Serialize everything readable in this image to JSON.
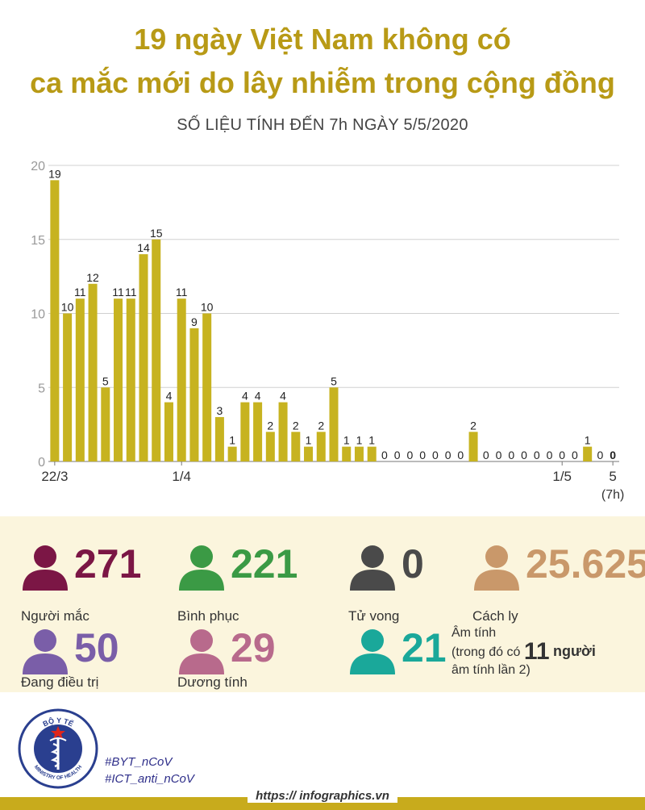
{
  "title_line1": "19 ngày Việt Nam không có",
  "title_line2": "ca mắc mới do lây nhiễm trong cộng đồng",
  "subtitle": "SỐ LIỆU TÍNH ĐẾN 7h NGÀY 5/5/2020",
  "colors": {
    "bar": "#c7b320",
    "title": "#b89a16",
    "panel": "#fbf5dd"
  },
  "chart_data": {
    "type": "bar",
    "title": "",
    "xlabel": "",
    "ylabel": "",
    "ylim": [
      0,
      20
    ],
    "yticks": [
      0,
      5,
      10,
      15,
      20
    ],
    "grid": true,
    "values": [
      19,
      10,
      11,
      12,
      5,
      11,
      11,
      14,
      15,
      4,
      11,
      9,
      10,
      3,
      1,
      4,
      4,
      2,
      4,
      2,
      1,
      2,
      5,
      1,
      1,
      1,
      0,
      0,
      0,
      0,
      0,
      0,
      0,
      2,
      0,
      0,
      0,
      0,
      0,
      0,
      0,
      0,
      1,
      0,
      0
    ],
    "x_tick_labels": [
      {
        "index": 0,
        "label": "22/3"
      },
      {
        "index": 10,
        "label": "1/4"
      },
      {
        "index": 40,
        "label": "1/5"
      },
      {
        "index": 44,
        "label": "5"
      }
    ],
    "last_note": "(7h)"
  },
  "stats": [
    {
      "id": "cases",
      "value": "271",
      "label": "Người mắc",
      "color": "#7b1645"
    },
    {
      "id": "recovered",
      "value": "221",
      "label": "Bình phục",
      "color": "#3b9a45"
    },
    {
      "id": "deaths",
      "value": "0",
      "label": "Tử vong",
      "color": "#4a4a4a"
    },
    {
      "id": "quarantine",
      "value": "25.625",
      "label": "Cách ly",
      "color": "#c9986a"
    },
    {
      "id": "treating",
      "value": "50",
      "label": "Đang điều trị",
      "color": "#7a5ea8"
    },
    {
      "id": "positive",
      "value": "29",
      "label": "Dương tính",
      "color": "#b86a8c"
    },
    {
      "id": "negative",
      "value": "21",
      "label": "",
      "color": "#1aa89a"
    }
  ],
  "negative_note": {
    "line1": "Âm tính",
    "line2_prefix": "(trong đó có",
    "line2_number": "11",
    "line2_suffix": "người",
    "line3": "âm tính lần 2)"
  },
  "logo": {
    "top_text": "BỘ Y TẾ",
    "bottom_text": "MINISTRY OF HEALTH"
  },
  "hashtags": [
    "#BYT_nCoV",
    "#ICT_anti_nCoV"
  ],
  "site": "https:// infographics.vn"
}
